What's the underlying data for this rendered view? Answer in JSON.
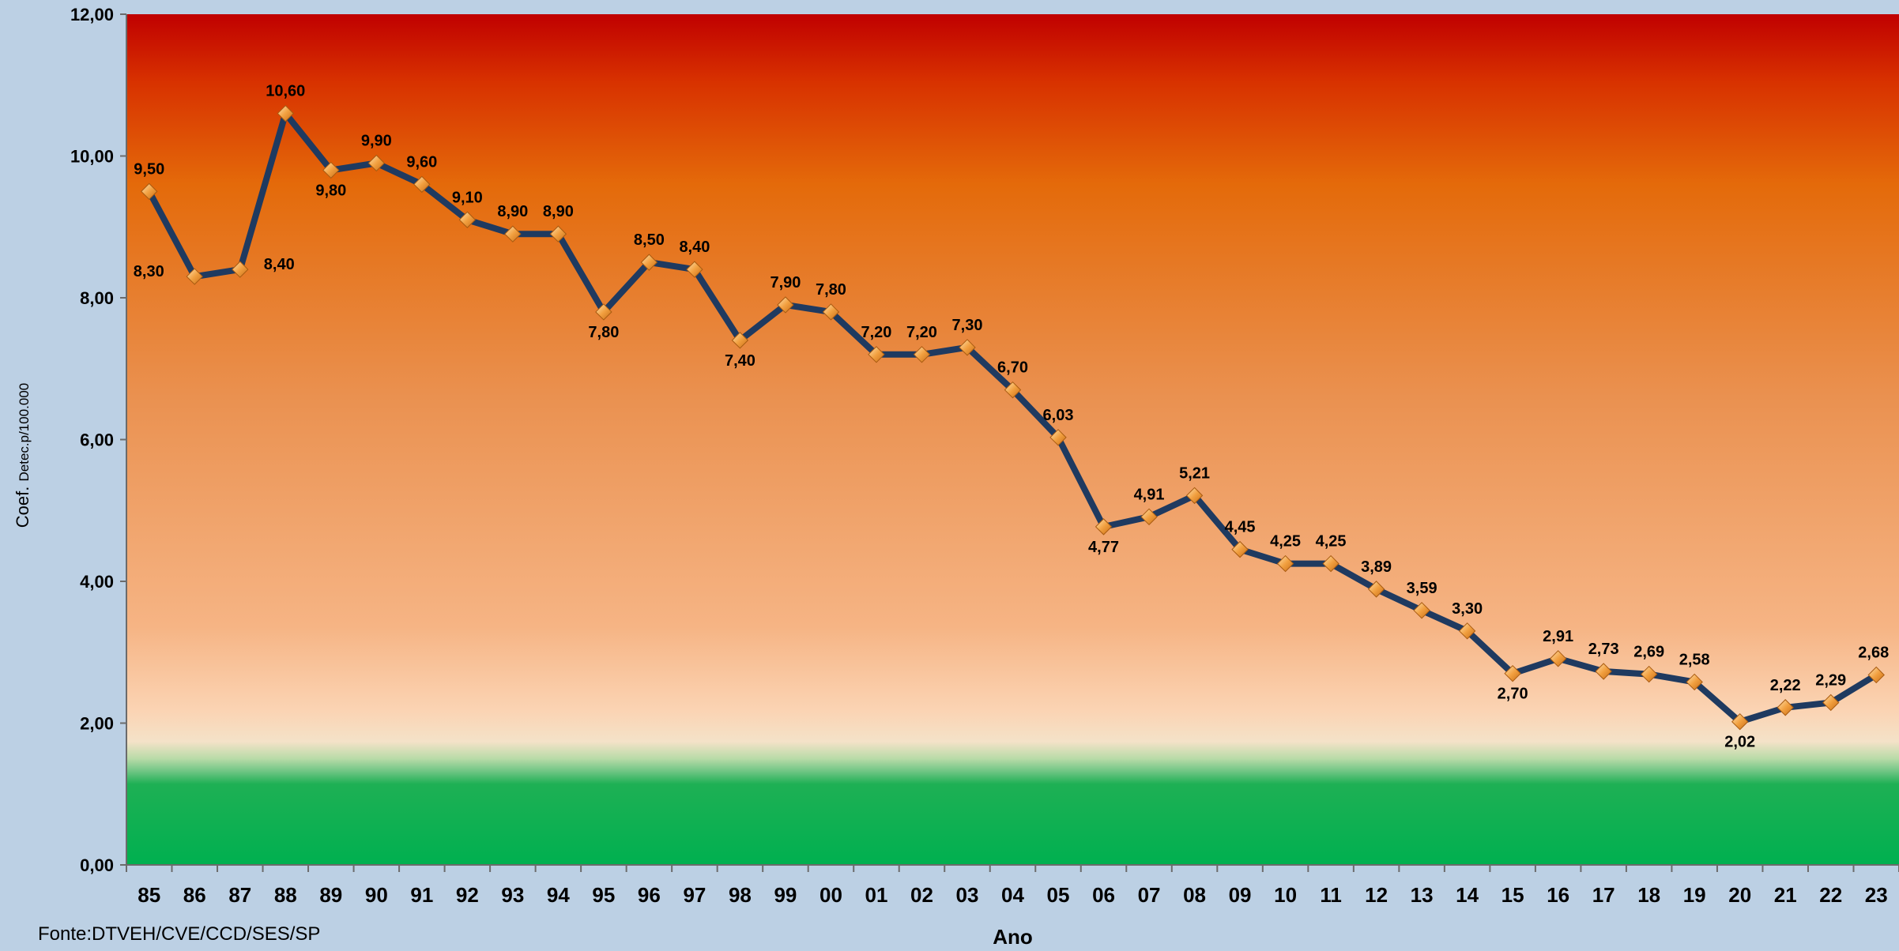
{
  "chart_data": {
    "type": "line",
    "categories": [
      "85",
      "86",
      "87",
      "88",
      "89",
      "90",
      "91",
      "92",
      "93",
      "94",
      "95",
      "96",
      "97",
      "98",
      "99",
      "00",
      "01",
      "02",
      "03",
      "04",
      "05",
      "06",
      "07",
      "08",
      "09",
      "10",
      "11",
      "12",
      "13",
      "14",
      "15",
      "16",
      "17",
      "18",
      "19",
      "20",
      "21",
      "22",
      "23"
    ],
    "series": [
      {
        "values": [
          9.5,
          8.3,
          8.4,
          10.6,
          9.8,
          9.9,
          9.6,
          9.1,
          8.9,
          8.9,
          7.8,
          8.5,
          8.4,
          7.4,
          7.9,
          7.8,
          7.2,
          7.2,
          7.3,
          6.7,
          6.03,
          4.77,
          4.91,
          5.21,
          4.45,
          4.25,
          4.25,
          3.89,
          3.59,
          3.3,
          2.7,
          2.91,
          2.73,
          2.69,
          2.58,
          2.02,
          2.22,
          2.29,
          2.68
        ],
        "labels": [
          "9,50",
          "8,30",
          "8,40",
          "10,60",
          "9,80",
          "9,90",
          "9,60",
          "9,10",
          "8,90",
          "8,90",
          "7,80",
          "8,50",
          "8,40",
          "7,40",
          "7,90",
          "7,80",
          "7,20",
          "7,20",
          "7,30",
          "6,70",
          "6,03",
          "4,77",
          "4,91",
          "5,21",
          "4,45",
          "4,25",
          "4,25",
          "3,89",
          "3,59",
          "3,30",
          "2,70",
          "2,91",
          "2,73",
          "2,69",
          "2,58",
          "2,02",
          "2,22",
          "2,29",
          "2,68"
        ]
      }
    ],
    "ylim": [
      0,
      12
    ],
    "yticks": [
      0,
      2,
      4,
      6,
      8,
      10,
      12
    ],
    "ytick_labels": [
      "0,00",
      "2,00",
      "4,00",
      "6,00",
      "8,00",
      "10,00",
      "12,00"
    ],
    "xlabel": "Ano",
    "ylabel_main": "Coef.",
    "ylabel_small": "Detec.p/100.000",
    "source": "Fonte:DTVEH/CVE/CCD/SES/SP",
    "grid": false,
    "colors": {
      "line": "#1f3a60",
      "marker": "#f0a040",
      "page_background": "#bcd0e4",
      "background_top": "#c00000",
      "background_mid": "#e87a1e",
      "background_low": "#f9c9a0",
      "background_green": "#00b050"
    }
  }
}
